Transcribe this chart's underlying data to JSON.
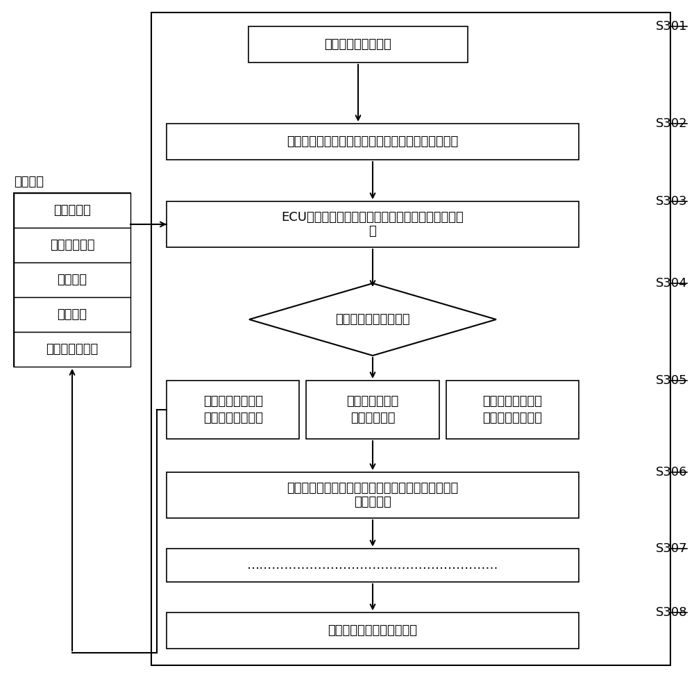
{
  "bg_color": "#ffffff",
  "line_color": "#000000",
  "text_color": "#000000",
  "feedback_label": "反馈参数",
  "feedback_items": [
    "发动机温度",
    "缸内燃气温度",
    "排气温度",
    "进气流量",
    "冷却柴油回油量"
  ],
  "box_texts": {
    "S301": "发动机起动怠速运行",
    "S302": "冷却柴油油量控制阀初始开度，针阀泄漏的正常回油",
    "S303_line1": "ECU计算热负荷及冷却柴油对喷射器针阀体的冷却强",
    "S303_line2": "度",
    "S304": "判断是否满足冷却要求",
    "S305_left_line1": "冷却柴油控制阀开",
    "S305_left_line2": "度减小回油量减少",
    "S305_mid_line1": "冷却柴油控制阀",
    "S305_mid_line2": "开度保持不变",
    "S305_right_line1": "冷却柴油控制阀开",
    "S305_right_line2": "度增大回油量增加",
    "S306_line1": "确定发动机工况及冷却柴油控制阀开度的对应关系，",
    "S306_line2": "标定下一点",
    "S307": "……………………………………………………",
    "S308": "标定完成，发动机正常运转"
  },
  "step_labels": [
    "S301",
    "S302",
    "S303",
    "S304",
    "S305",
    "S306",
    "S307",
    "S308"
  ],
  "font_size_main": 13,
  "font_size_step": 13,
  "font_size_feedback": 13
}
